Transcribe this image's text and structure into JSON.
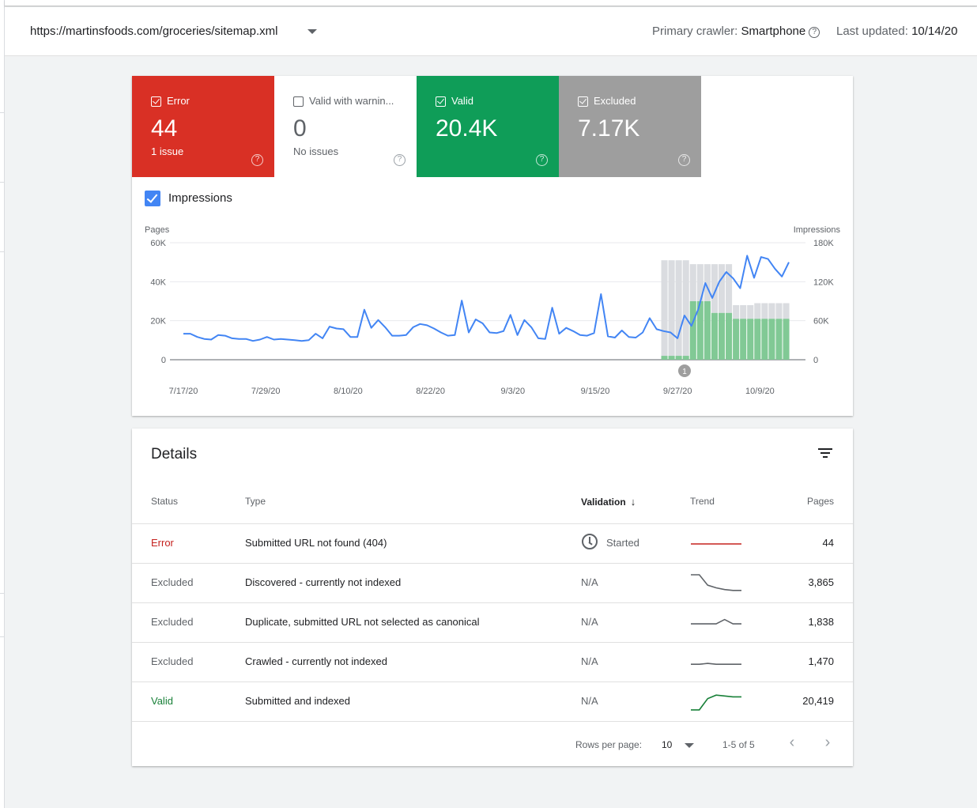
{
  "header": {
    "sitemap_url": "https://martinsfoods.com/groceries/sitemap.xml",
    "crawler_label": "Primary crawler: ",
    "crawler_value": "Smartphone",
    "updated_label": "Last updated: ",
    "updated_value": "10/14/20",
    "help_glyph": "?"
  },
  "tiles": [
    {
      "label": "Error",
      "value": "44",
      "sub": "1 issue",
      "color": "#d93025",
      "checked": true
    },
    {
      "label": "Valid with warnin...",
      "value": "0",
      "sub": "No issues",
      "color": "#ffffff",
      "checked": false
    },
    {
      "label": "Valid",
      "value": "20.4K",
      "sub": "",
      "color": "#0f9d58",
      "checked": true
    },
    {
      "label": "Excluded",
      "value": "7.17K",
      "sub": "",
      "color": "#9e9e9e",
      "checked": true
    }
  ],
  "impressions": {
    "label": "Impressions",
    "checked": true
  },
  "chart_data": {
    "type": "bar",
    "left_axis_label": "Pages",
    "right_axis_label": "Impressions",
    "left_ticks": [
      "60K",
      "40K",
      "20K",
      "0"
    ],
    "right_ticks": [
      "180K",
      "120K",
      "60K",
      "0"
    ],
    "ylim_left": [
      0,
      60000
    ],
    "ylim_right": [
      0,
      180000
    ],
    "x_labels": [
      "7/17/20",
      "7/29/20",
      "8/10/20",
      "8/22/20",
      "9/3/20",
      "9/15/20",
      "9/27/20",
      "10/9/20"
    ],
    "annotation": "1",
    "grid": true,
    "bars": {
      "colors": {
        "valid": "#81c995",
        "excluded": "#dadce0"
      },
      "valid": [
        2000,
        2000,
        2000,
        2000,
        30000,
        30000,
        30000,
        24000,
        24000,
        24000,
        21000,
        21000,
        21000,
        21000,
        21000,
        21000,
        21000,
        21000
      ],
      "excluded": [
        49000,
        49000,
        49000,
        49000,
        19000,
        19000,
        19000,
        25000,
        25000,
        25000,
        7000,
        7000,
        7000,
        8000,
        8000,
        8000,
        8000,
        8000
      ]
    },
    "line": {
      "color": "#4285f4",
      "values": [
        40000,
        40000,
        35000,
        32000,
        31000,
        38000,
        37000,
        33000,
        32000,
        32000,
        29000,
        31000,
        35000,
        31000,
        32000,
        31000,
        30000,
        29000,
        30000,
        40000,
        33000,
        51000,
        48000,
        47000,
        35000,
        35000,
        77000,
        49000,
        61000,
        50000,
        37000,
        37000,
        38000,
        50000,
        55000,
        53000,
        48000,
        42000,
        37000,
        38000,
        91000,
        42000,
        62000,
        56000,
        42000,
        41000,
        44000,
        69000,
        38000,
        61000,
        50000,
        33000,
        32000,
        80000,
        40000,
        49000,
        44000,
        38000,
        37000,
        41000,
        101000,
        36000,
        34000,
        45000,
        35000,
        34000,
        42000,
        64000,
        47000,
        44000,
        42000,
        33000,
        68000,
        52000,
        78000,
        118000,
        95000,
        120000,
        135000,
        125000,
        110000,
        160000,
        126000,
        158000,
        155000,
        140000,
        128000,
        150000
      ]
    }
  },
  "details": {
    "title": "Details",
    "columns": {
      "status": "Status",
      "type": "Type",
      "validation": "Validation",
      "trend": "Trend",
      "pages": "Pages"
    },
    "sort_arrow": "↓",
    "rows": [
      {
        "status": "Error",
        "type": "Submitted URL not found (404)",
        "validation": "Started",
        "pages": "44",
        "trend_color": "#c5221f",
        "trend": [
          0.5,
          0.5,
          0.5,
          0.5,
          0.5,
          0.5,
          0.5
        ]
      },
      {
        "status": "Excluded",
        "type": "Discovered - currently not indexed",
        "validation": "N/A",
        "pages": "3,865",
        "trend_color": "#5f6368",
        "trend": [
          0.0,
          0.0,
          0.6,
          0.75,
          0.85,
          0.9,
          0.9
        ]
      },
      {
        "status": "Excluded",
        "type": "Duplicate, submitted URL not selected as canonical",
        "validation": "N/A",
        "pages": "1,838",
        "trend_color": "#5f6368",
        "trend": [
          0.55,
          0.55,
          0.55,
          0.55,
          0.3,
          0.55,
          0.55
        ]
      },
      {
        "status": "Excluded",
        "type": "Crawled - currently not indexed",
        "validation": "N/A",
        "pages": "1,470",
        "trend_color": "#5f6368",
        "trend": [
          0.6,
          0.6,
          0.55,
          0.6,
          0.6,
          0.6,
          0.6
        ]
      },
      {
        "status": "Valid",
        "type": "Submitted and indexed",
        "validation": "N/A",
        "pages": "20,419",
        "trend_color": "#188038",
        "trend": [
          0.95,
          0.95,
          0.3,
          0.1,
          0.15,
          0.2,
          0.2
        ]
      }
    ],
    "footer": {
      "rows_per_page_label": "Rows per page:",
      "rows_per_page_value": "10",
      "range": "1-5 of 5",
      "prev": "‹",
      "next": "›"
    }
  }
}
